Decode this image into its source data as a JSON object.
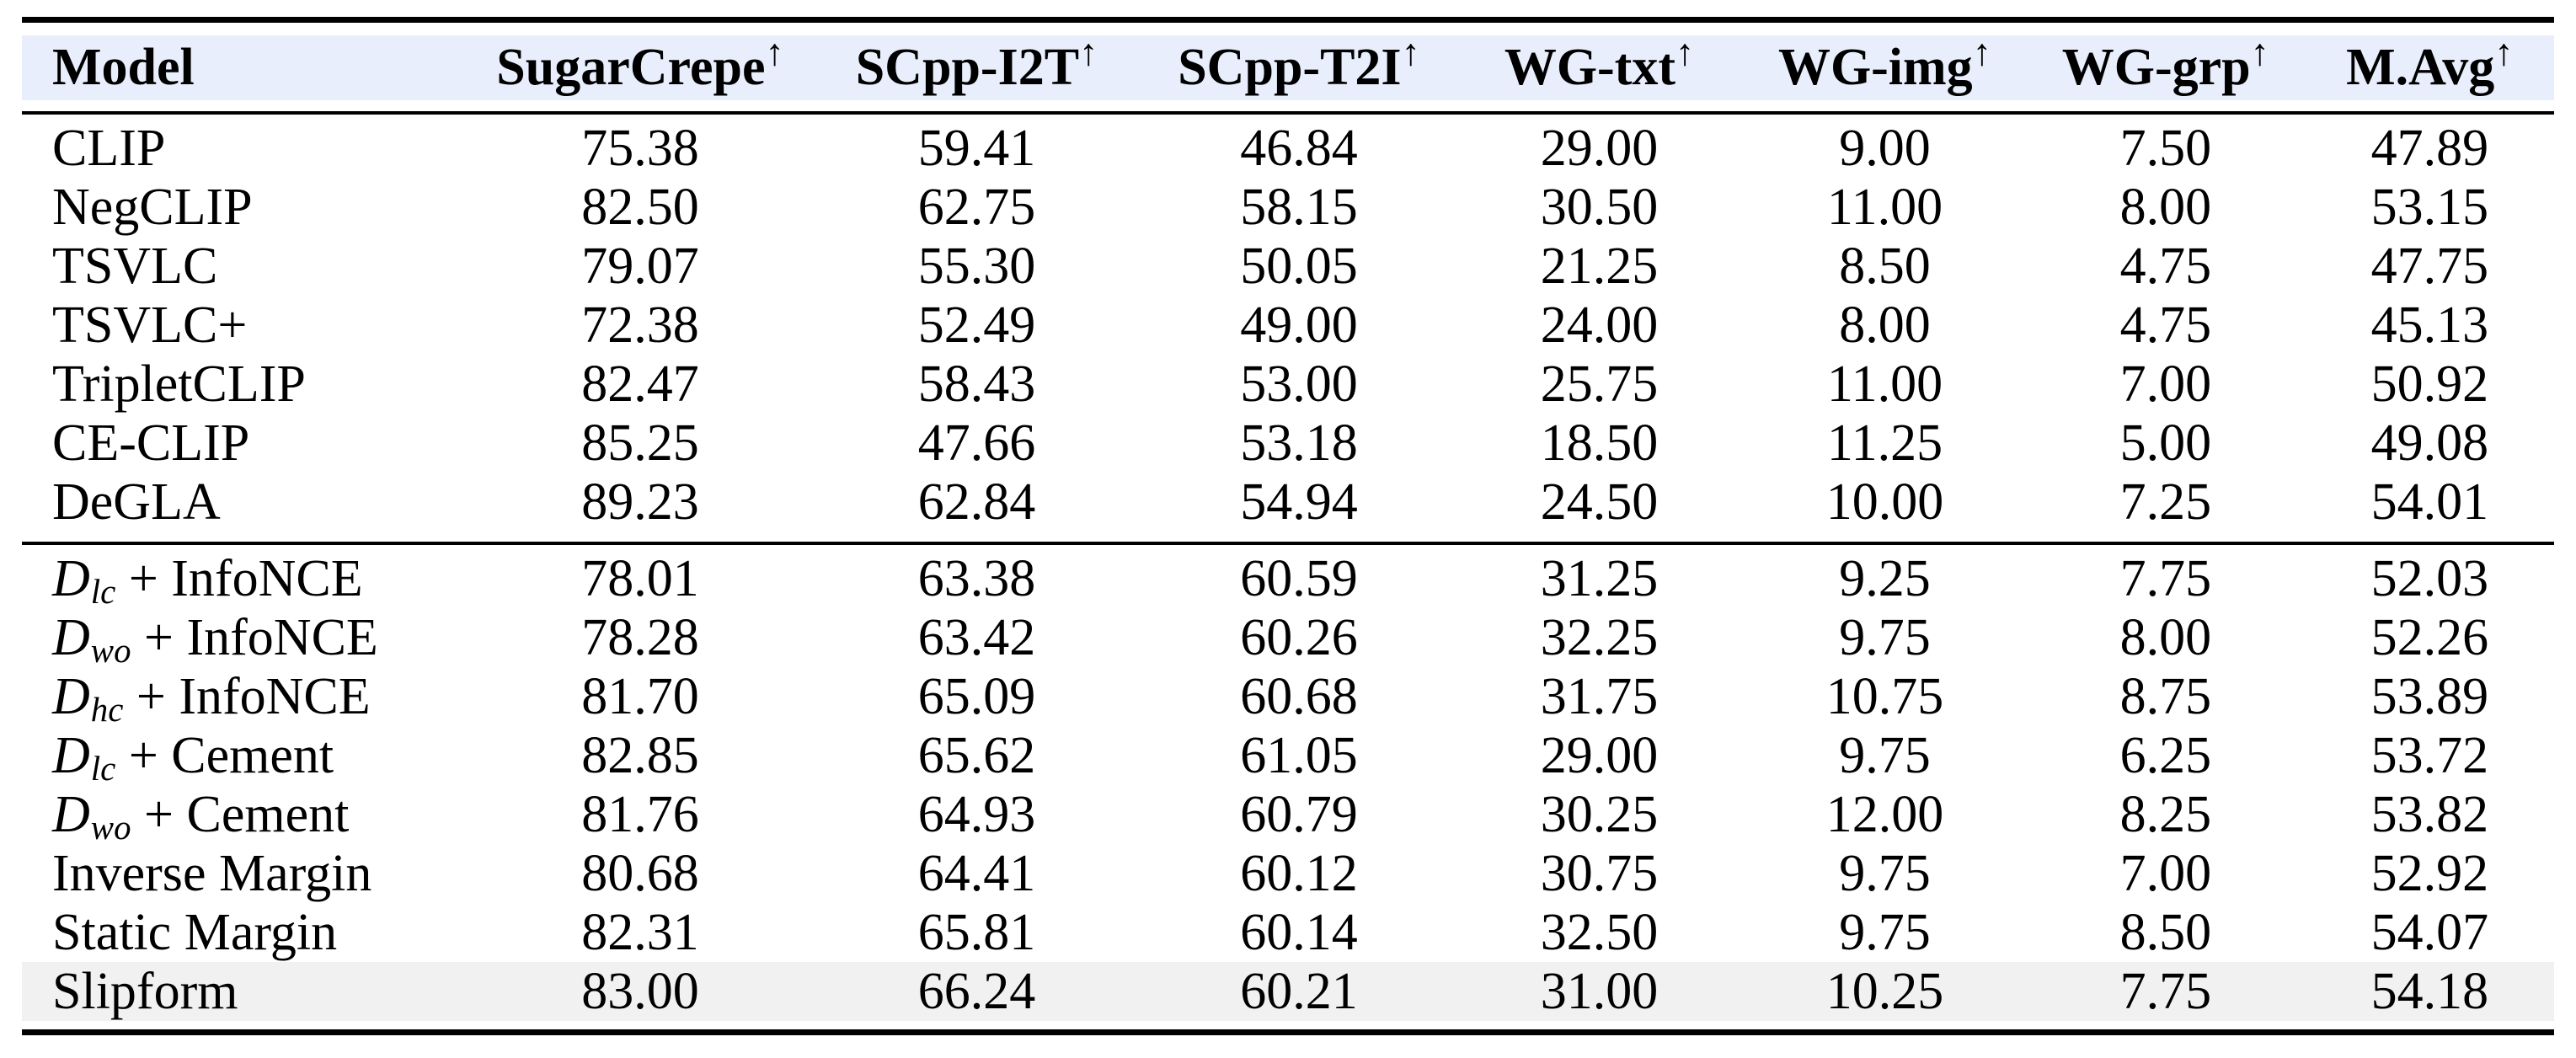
{
  "table": {
    "colors": {
      "header_bg": "#e8eefb",
      "highlight_bg": "#f1f1f1",
      "rule": "#000000"
    },
    "columns": [
      {
        "label": "Model",
        "arrow": ""
      },
      {
        "label": "SugarCrepe",
        "arrow": "↑"
      },
      {
        "label": "SCpp-I2T",
        "arrow": "↑"
      },
      {
        "label": "SCpp-T2I",
        "arrow": "↑"
      },
      {
        "label": "WG-txt",
        "arrow": "↑"
      },
      {
        "label": "WG-img",
        "arrow": "↑"
      },
      {
        "label": "WG-grp",
        "arrow": "↑"
      },
      {
        "label": "M.Avg",
        "arrow": "↑"
      }
    ],
    "sections": [
      {
        "rows": [
          {
            "model": {
              "text": "CLIP"
            },
            "values": [
              "75.38",
              "59.41",
              "46.84",
              "29.00",
              "9.00",
              "7.50",
              "47.89"
            ]
          },
          {
            "model": {
              "text": "NegCLIP"
            },
            "values": [
              "82.50",
              "62.75",
              "58.15",
              "30.50",
              "11.00",
              "8.00",
              "53.15"
            ]
          },
          {
            "model": {
              "text": "TSVLC"
            },
            "values": [
              "79.07",
              "55.30",
              "50.05",
              "21.25",
              "8.50",
              "4.75",
              "47.75"
            ]
          },
          {
            "model": {
              "text": "TSVLC+"
            },
            "values": [
              "72.38",
              "52.49",
              "49.00",
              "24.00",
              "8.00",
              "4.75",
              "45.13"
            ]
          },
          {
            "model": {
              "text": "TripletCLIP"
            },
            "values": [
              "82.47",
              "58.43",
              "53.00",
              "25.75",
              "11.00",
              "7.00",
              "50.92"
            ]
          },
          {
            "model": {
              "text": "CE-CLIP"
            },
            "values": [
              "85.25",
              "47.66",
              "53.18",
              "18.50",
              "11.25",
              "5.00",
              "49.08"
            ]
          },
          {
            "model": {
              "text": "DeGLA"
            },
            "values": [
              "89.23",
              "62.84",
              "54.94",
              "24.50",
              "10.00",
              "7.25",
              "54.01"
            ]
          }
        ]
      },
      {
        "rows": [
          {
            "model": {
              "d": "D",
              "sub": "lc",
              "text": " + InfoNCE"
            },
            "values": [
              "78.01",
              "63.38",
              "60.59",
              "31.25",
              "9.25",
              "7.75",
              "52.03"
            ]
          },
          {
            "model": {
              "d": "D",
              "sub": "wo",
              "text": " + InfoNCE"
            },
            "values": [
              "78.28",
              "63.42",
              "60.26",
              "32.25",
              "9.75",
              "8.00",
              "52.26"
            ]
          },
          {
            "model": {
              "d": "D",
              "sub": "hc",
              "text": " + InfoNCE"
            },
            "values": [
              "81.70",
              "65.09",
              "60.68",
              "31.75",
              "10.75",
              "8.75",
              "53.89"
            ]
          },
          {
            "model": {
              "d": "D",
              "sub": "lc",
              "text": " + Cement"
            },
            "values": [
              "82.85",
              "65.62",
              "61.05",
              "29.00",
              "9.75",
              "6.25",
              "53.72"
            ]
          },
          {
            "model": {
              "d": "D",
              "sub": "wo",
              "text": " + Cement"
            },
            "values": [
              "81.76",
              "64.93",
              "60.79",
              "30.25",
              "12.00",
              "8.25",
              "53.82"
            ]
          },
          {
            "model": {
              "text": "Inverse Margin"
            },
            "values": [
              "80.68",
              "64.41",
              "60.12",
              "30.75",
              "9.75",
              "7.00",
              "52.92"
            ]
          },
          {
            "model": {
              "text": "Static Margin"
            },
            "values": [
              "82.31",
              "65.81",
              "60.14",
              "32.50",
              "9.75",
              "8.50",
              "54.07"
            ]
          },
          {
            "model": {
              "text": "Slipform"
            },
            "highlight": true,
            "values": [
              "83.00",
              "66.24",
              "60.21",
              "31.00",
              "10.25",
              "7.75",
              "54.18"
            ]
          }
        ]
      }
    ]
  }
}
